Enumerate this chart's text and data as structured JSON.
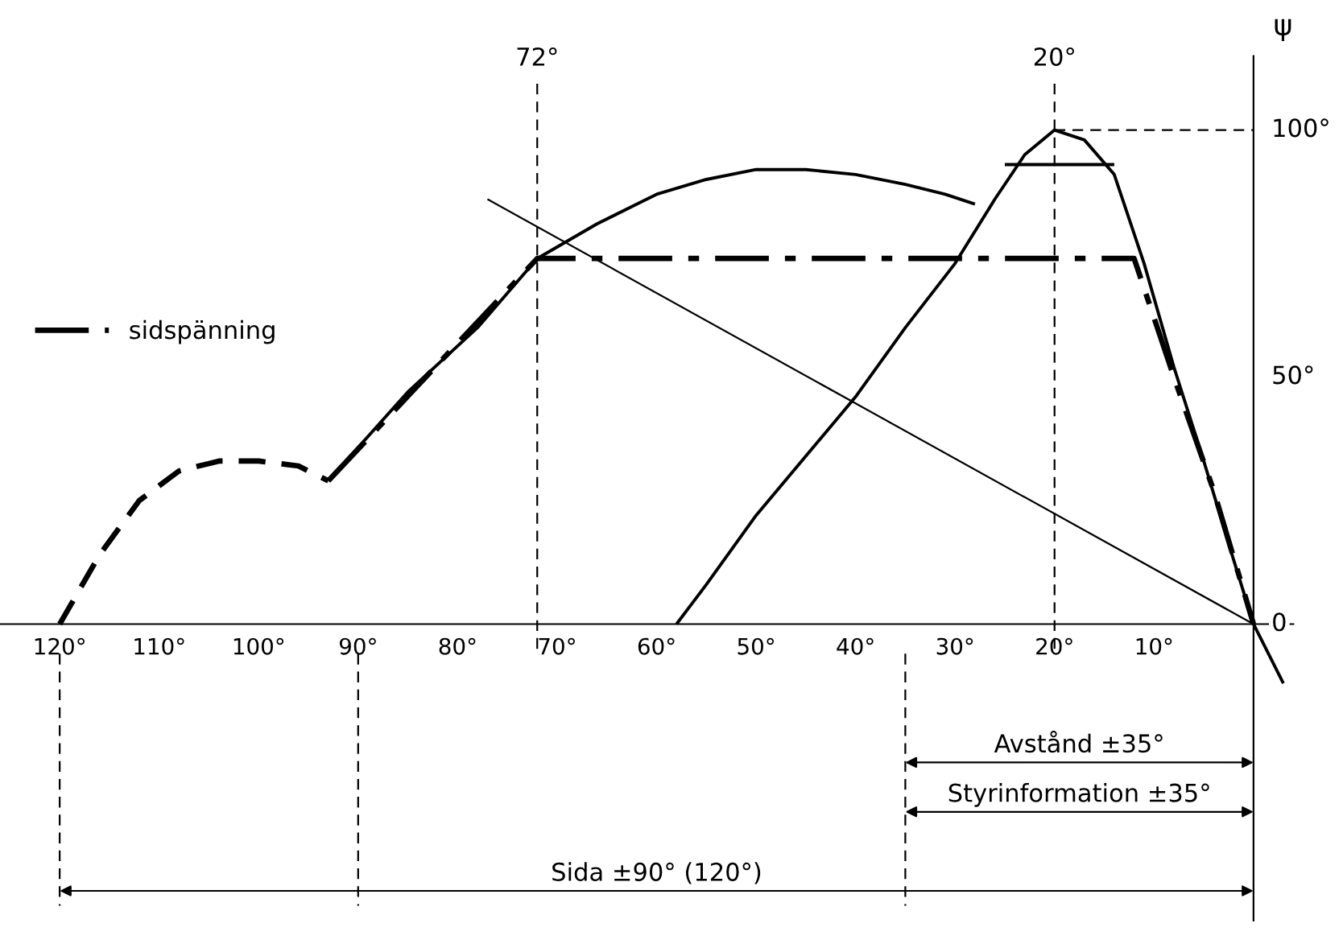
{
  "chart_data": {
    "type": "line",
    "series": [
      {
        "color": "#000000",
        "line_style": "dashed",
        "x": [
          120,
          116,
          112,
          108,
          104,
          100,
          96,
          93
        ],
        "values": [
          0,
          14,
          25,
          31,
          33,
          33,
          32,
          29
        ]
      },
      {
        "color": "#000000",
        "line_style": "solid",
        "x": [
          93,
          85,
          78,
          72,
          66,
          60,
          55,
          50,
          45,
          40,
          35,
          31,
          28
        ],
        "values": [
          29,
          47,
          60,
          74,
          81,
          87,
          90,
          92,
          92,
          91,
          89,
          87,
          85
        ]
      },
      {
        "color": "#000000",
        "line_style": "solid",
        "x": [
          58,
          55,
          50,
          45,
          40,
          35,
          30,
          26,
          23,
          20,
          17,
          14,
          11,
          8,
          5,
          2,
          0,
          -3
        ],
        "values": [
          0,
          8,
          22,
          34,
          46,
          60,
          73,
          86,
          95,
          100,
          98,
          91,
          73,
          52,
          33,
          13,
          0,
          -12
        ]
      },
      {
        "color": "#000000",
        "line_style": "solid",
        "x": [
          25,
          14
        ],
        "values": [
          93,
          93
        ]
      },
      {
        "name": "sidspänning",
        "color": "#000000",
        "line_style": "dashdot",
        "x": [
          93,
          72,
          12,
          8,
          4,
          0
        ],
        "values": [
          29,
          74,
          74,
          50,
          27,
          0
        ]
      },
      {
        "color": "#000000",
        "line_style": "solid",
        "x": [
          77,
          0
        ],
        "values": [
          86,
          0
        ]
      }
    ],
    "xlim": [
      126,
      -4
    ],
    "ylim": [
      -60,
      115
    ],
    "xticks": [
      {
        "value": 120,
        "label": "120°"
      },
      {
        "value": 110,
        "label": "110°"
      },
      {
        "value": 100,
        "label": "100°"
      },
      {
        "value": 90,
        "label": "90°"
      },
      {
        "value": 80,
        "label": "80°"
      },
      {
        "value": 70,
        "label": "70°"
      },
      {
        "value": 60,
        "label": "60°"
      },
      {
        "value": 50,
        "label": "50°"
      },
      {
        "value": 40,
        "label": "40°"
      },
      {
        "value": 30,
        "label": "30°"
      },
      {
        "value": 20,
        "label": "20°"
      },
      {
        "value": 10,
        "label": "10°"
      }
    ],
    "yticks": [
      {
        "value": 0,
        "label": "0"
      },
      {
        "value": 50,
        "label": "50°"
      },
      {
        "value": 100,
        "label": "100°"
      }
    ],
    "ylabel": "ψ",
    "ref_lines": [
      {
        "axis": "x",
        "value": 72,
        "label": "72°"
      },
      {
        "axis": "x",
        "value": 20,
        "label": "20°"
      },
      {
        "axis": "y",
        "value": 100
      },
      {
        "axis": "x",
        "value": 35
      },
      {
        "axis": "x",
        "value": 90
      },
      {
        "axis": "x",
        "value": 120
      }
    ],
    "annotations": [
      "Avstånd ±35°",
      "Styrinformation ±35°",
      "Sida ±90° (120°)"
    ],
    "legend": "top left",
    "grid": false,
    "marker": "none"
  }
}
